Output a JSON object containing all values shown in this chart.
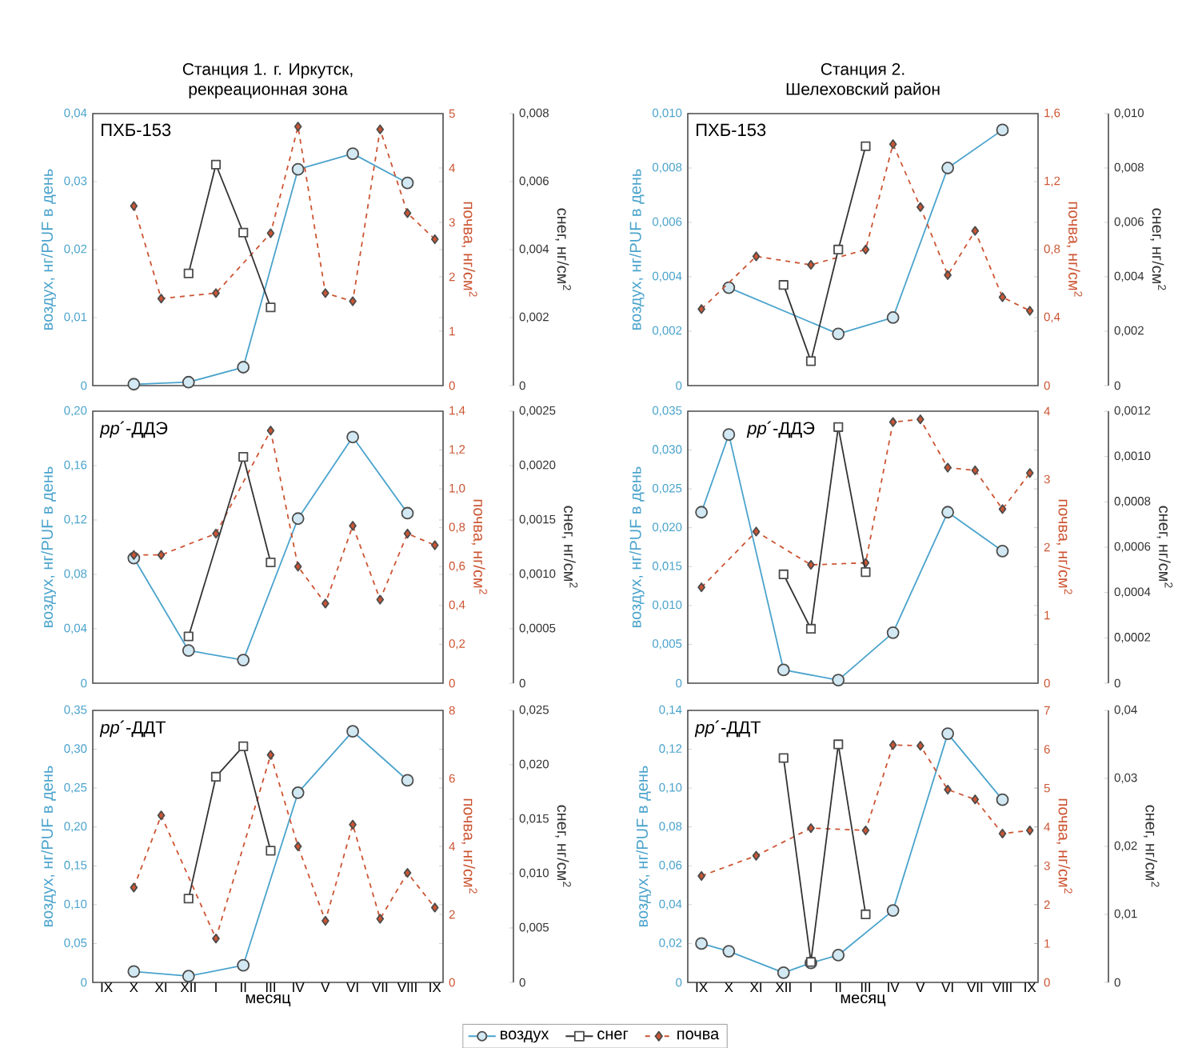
{
  "chart_data": [
    {
      "type": "line",
      "title": "Станция 1. г. Иркутск,",
      "subtitle": "рекреационная зона",
      "annotations": [
        "ПХБ-153"
      ],
      "ylabel": "воздух, нг/PUF в день",
      "y2label": "почва, нг/см$^{2}$",
      "y3label": "снег, нг/см$^{2}$",
      "tick_labels": "y",
      "categories": [
        null,
        null,
        null,
        null,
        null,
        null,
        null,
        null,
        null,
        null,
        null,
        null,
        null
      ],
      "ylim": [
        0,
        0.04
      ],
      "yticks": [
        0,
        {
          "value": 0.01,
          "label": "0,01"
        },
        {
          "value": 0.02,
          "label": "0,02"
        },
        {
          "value": 0.03,
          "label": "0,03"
        },
        {
          "value": 0.04,
          "label": "0,04"
        }
      ],
      "y2lim": [
        0,
        5
      ],
      "y2ticks": [
        0,
        1,
        2,
        3,
        4,
        5
      ],
      "y3lim": [
        0,
        0.008
      ],
      "y3ticks": [
        0,
        {
          "value": 0.002,
          "label": "0,002"
        },
        {
          "value": 0.004,
          "label": "0,004"
        },
        {
          "value": 0.006,
          "label": "0,006"
        },
        {
          "value": 0.008,
          "label": "0,008"
        }
      ],
      "series": [
        {
          "color": "#4aa3cc",
          "marker": "circle",
          "line_style": "solid",
          "values": [
            null,
            0.0002,
            null,
            0.0005,
            null,
            0.0027,
            null,
            0.0318,
            null,
            0.0341,
            null,
            0.0298,
            null
          ]
        },
        {
          "color": "#333333",
          "marker": "square",
          "line_style": "solid",
          "axis": "y3",
          "values": [
            null,
            null,
            null,
            0.0033,
            0.0065,
            0.0045,
            0.0023,
            null,
            null,
            null,
            null,
            null,
            null
          ]
        },
        {
          "color": "#cc5533",
          "marker": "diamond",
          "line_style": "dashed",
          "axis": "y2",
          "values": [
            null,
            3.3,
            1.6,
            null,
            1.7,
            null,
            2.8,
            4.76,
            1.7,
            1.55,
            4.71,
            3.17,
            2.69
          ]
        }
      ]
    },
    {
      "type": "line",
      "title": "Станция 2.",
      "subtitle": "Шелеховский район",
      "annotations": [
        "ПХБ-153"
      ],
      "ylabel": "воздух, нг/PUF в день",
      "y2label": "почва, нг/см$^{2}$",
      "y3label": "снег, нг/см$^{2}$",
      "tick_labels": "y",
      "categories": [
        null,
        null,
        null,
        null,
        null,
        null,
        null,
        null,
        null,
        null,
        null,
        null,
        null
      ],
      "ylim": [
        0,
        0.01
      ],
      "yticks": [
        0,
        {
          "value": 0.002,
          "label": "0,002"
        },
        {
          "value": 0.004,
          "label": "0,004"
        },
        {
          "value": 0.006,
          "label": "0,006"
        },
        {
          "value": 0.008,
          "label": "0,008"
        },
        {
          "value": 0.01,
          "label": "0,010"
        }
      ],
      "y2lim": [
        0,
        1.6
      ],
      "y2ticks": [
        0,
        {
          "value": 0.4,
          "label": "0,4"
        },
        {
          "value": 0.8,
          "label": "0,8"
        },
        {
          "value": 1.2,
          "label": "1,2"
        },
        {
          "value": 1.6,
          "label": "1,6"
        }
      ],
      "y3lim": [
        0,
        0.01
      ],
      "y3ticks": [
        0,
        {
          "value": 0.002,
          "label": "0,002"
        },
        {
          "value": 0.004,
          "label": "0,004"
        },
        {
          "value": 0.006,
          "label": "0,006"
        },
        {
          "value": 0.008,
          "label": "0,008"
        },
        {
          "value": 0.01,
          "label": "0,010"
        }
      ],
      "series": [
        {
          "color": "#4aa3cc",
          "marker": "circle",
          "line_style": "solid",
          "values": [
            null,
            0.0036,
            null,
            null,
            null,
            0.0019,
            null,
            0.0025,
            null,
            0.008,
            null,
            0.0094,
            null
          ]
        },
        {
          "color": "#333333",
          "marker": "square",
          "line_style": "solid",
          "axis": "y3",
          "values": [
            null,
            null,
            null,
            0.0037,
            0.0009,
            0.005,
            0.0088,
            null,
            null,
            null,
            null,
            null,
            null
          ]
        },
        {
          "color": "#cc5533",
          "marker": "diamond",
          "line_style": "dashed",
          "axis": "y2",
          "values": [
            0.45,
            null,
            0.76,
            null,
            0.71,
            null,
            0.8,
            1.42,
            1.05,
            0.65,
            0.91,
            0.52,
            0.44
          ]
        }
      ]
    },
    {
      "type": "line",
      "annotations": [
        "*pp*´-ДДЭ"
      ],
      "ylabel": "воздух, нг/PUF в день",
      "y2label": "почва, нг/см$^{2}$",
      "y3label": "снег, нг/см$^{2}$",
      "tick_labels": "y",
      "categories": [
        null,
        null,
        null,
        null,
        null,
        null,
        null,
        null,
        null,
        null,
        null,
        null,
        null
      ],
      "ylim": [
        0,
        0.2
      ],
      "yticks": [
        0,
        {
          "value": 0.04,
          "label": "0,04"
        },
        {
          "value": 0.08,
          "label": "0,08"
        },
        {
          "value": 0.12,
          "label": "0,12"
        },
        {
          "value": 0.16,
          "label": "0,16"
        },
        {
          "value": 0.2,
          "label": "0,20"
        }
      ],
      "y2lim": [
        0,
        1.4
      ],
      "y2ticks": [
        0,
        {
          "value": 0.2,
          "label": "0,2"
        },
        {
          "value": 0.4,
          "label": "0,4"
        },
        {
          "value": 0.6,
          "label": "0,6"
        },
        {
          "value": 0.8,
          "label": "0,8"
        },
        {
          "value": 1.0,
          "label": "1,0"
        },
        {
          "value": 1.2,
          "label": "1,2"
        },
        {
          "value": 1.4,
          "label": "1,4"
        }
      ],
      "y3lim": [
        0,
        0.0025
      ],
      "y3ticks": [
        0,
        {
          "value": 0.0005,
          "label": "0,0005"
        },
        {
          "value": 0.001,
          "label": "0,0010"
        },
        {
          "value": 0.0015,
          "label": "0,0015"
        },
        {
          "value": 0.002,
          "label": "0,0020"
        },
        {
          "value": 0.0025,
          "label": "0,0025"
        }
      ],
      "series": [
        {
          "color": "#4aa3cc",
          "marker": "circle",
          "line_style": "solid",
          "values": [
            null,
            0.092,
            null,
            0.024,
            null,
            0.017,
            null,
            0.121,
            null,
            0.181,
            null,
            0.125,
            null
          ]
        },
        {
          "color": "#333333",
          "marker": "square",
          "line_style": "solid",
          "axis": "y3",
          "values": [
            null,
            null,
            null,
            0.00043,
            null,
            0.00208,
            0.00111,
            null,
            null,
            null,
            null,
            null,
            null
          ]
        },
        {
          "color": "#cc5533",
          "marker": "diamond",
          "line_style": "dashed",
          "axis": "y2",
          "values": [
            null,
            0.66,
            0.66,
            null,
            0.77,
            null,
            1.3,
            0.6,
            0.41,
            0.81,
            0.43,
            0.77,
            0.71
          ]
        }
      ]
    },
    {
      "type": "line",
      "annotations": [
        "*pp*´-ДДЭ"
      ],
      "ylabel": "воздух, нг/PUF в день",
      "y2label": "почва, нг/см$^{2}$",
      "y3label": "снег, нг/см$^{2}$",
      "tick_labels": "y",
      "categories": [
        null,
        null,
        null,
        null,
        null,
        null,
        null,
        null,
        null,
        null,
        null,
        null,
        null
      ],
      "ylim": [
        0,
        0.035
      ],
      "yticks": [
        0,
        {
          "value": 0.005,
          "label": "0,005"
        },
        {
          "value": 0.01,
          "label": "0,010"
        },
        {
          "value": 0.015,
          "label": "0,015"
        },
        {
          "value": 0.02,
          "label": "0,020"
        },
        {
          "value": 0.025,
          "label": "0,025"
        },
        {
          "value": 0.03,
          "label": "0,030"
        },
        {
          "value": 0.035,
          "label": "0,035"
        }
      ],
      "y2lim": [
        0,
        4
      ],
      "y2ticks": [
        0,
        1,
        2,
        3,
        4
      ],
      "y3lim": [
        0,
        0.0012
      ],
      "y3ticks": [
        0,
        {
          "value": 0.0002,
          "label": "0,0002"
        },
        {
          "value": 0.0004,
          "label": "0,0004"
        },
        {
          "value": 0.0006,
          "label": "0,0006"
        },
        {
          "value": 0.0008,
          "label": "0,0008"
        },
        {
          "value": 0.001,
          "label": "0,0010"
        },
        {
          "value": 0.0012,
          "label": "0,0012"
        }
      ],
      "series": [
        {
          "color": "#4aa3cc",
          "marker": "circle",
          "line_style": "solid",
          "values": [
            0.022,
            0.032,
            null,
            0.0017,
            null,
            0.0004,
            null,
            0.0065,
            null,
            0.022,
            null,
            0.017,
            null
          ]
        },
        {
          "color": "#333333",
          "marker": "square",
          "line_style": "solid",
          "axis": "y3",
          "values": [
            null,
            null,
            null,
            0.00048,
            0.00024,
            0.00113,
            0.00049,
            null,
            null,
            null,
            null,
            null,
            null
          ]
        },
        {
          "color": "#cc5533",
          "marker": "diamond",
          "line_style": "dashed",
          "axis": "y2",
          "values": [
            1.41,
            null,
            2.23,
            null,
            1.74,
            null,
            1.77,
            3.84,
            3.88,
            3.17,
            3.13,
            2.56,
            3.09
          ]
        }
      ]
    },
    {
      "type": "line",
      "annotations": [
        "*pp*´-ДДТ"
      ],
      "xlabel": "месяц",
      "ylabel": "воздух, нг/PUF в день",
      "y2label": "почва, нг/см$^{2}$",
      "y3label": "снег, нг/см$^{2}$",
      "legend": "bottom",
      "categories": [
        "IX",
        "X",
        "XI",
        "XII",
        "I",
        "II",
        "III",
        "IV",
        "V",
        "VI",
        "VII",
        "VIII",
        "IX"
      ],
      "ylim": [
        0,
        0.35
      ],
      "yticks": [
        0,
        {
          "value": 0.05,
          "label": "0,05"
        },
        {
          "value": 0.1,
          "label": "0,10"
        },
        {
          "value": 0.15,
          "label": "0,15"
        },
        {
          "value": 0.2,
          "label": "0,20"
        },
        {
          "value": 0.25,
          "label": "0,25"
        },
        {
          "value": 0.3,
          "label": "0,30"
        },
        {
          "value": 0.35,
          "label": "0,35"
        }
      ],
      "y2lim": [
        0,
        8
      ],
      "y2ticks": [
        0,
        2,
        4,
        6,
        8
      ],
      "y3lim": [
        0,
        0.025
      ],
      "y3ticks": [
        0,
        {
          "value": 0.005,
          "label": "0,005"
        },
        {
          "value": 0.01,
          "label": "0,010"
        },
        {
          "value": 0.015,
          "label": "0,015"
        },
        {
          "value": 0.02,
          "label": "0,020"
        },
        {
          "value": 0.025,
          "label": "0,025"
        }
      ],
      "series": [
        {
          "name": "воздух",
          "color": "#4aa3cc",
          "marker": "circle",
          "line_style": "solid",
          "values": [
            null,
            0.014,
            null,
            0.008,
            null,
            0.022,
            null,
            0.244,
            null,
            0.323,
            null,
            0.26,
            null
          ]
        },
        {
          "name": "снег",
          "color": "#333333",
          "marker": "square",
          "line_style": "solid",
          "axis": "y3",
          "values": [
            null,
            null,
            null,
            0.0077,
            0.0189,
            0.0217,
            0.0121,
            null,
            null,
            null,
            null,
            null,
            null
          ]
        },
        {
          "name": "почва",
          "color": "#cc5533",
          "marker": "diamond",
          "line_style": "dashed",
          "axis": "y2",
          "values": [
            null,
            2.79,
            4.91,
            null,
            1.29,
            null,
            6.69,
            4.0,
            1.81,
            4.64,
            1.87,
            3.22,
            2.2
          ]
        }
      ]
    },
    {
      "type": "line",
      "annotations": [
        "*pp*´-ДДТ"
      ],
      "xlabel": "месяц",
      "ylabel": "воздух, нг/PUF в день",
      "y2label": "почва, нг/см$^{2}$",
      "y3label": "снег, нг/см$^{2}$",
      "categories": [
        "IX",
        "X",
        "XI",
        "XII",
        "I",
        "II",
        "III",
        "IV",
        "V",
        "VI",
        "VII",
        "VIII",
        "IX"
      ],
      "ylim": [
        0,
        0.14
      ],
      "yticks": [
        0,
        {
          "value": 0.02,
          "label": "0,02"
        },
        {
          "value": 0.04,
          "label": "0,04"
        },
        {
          "value": 0.06,
          "label": "0,06"
        },
        {
          "value": 0.08,
          "label": "0,08"
        },
        {
          "value": 0.1,
          "label": "0,10"
        },
        {
          "value": 0.12,
          "label": "0,12"
        },
        {
          "value": 0.14,
          "label": "0,14"
        }
      ],
      "y2lim": [
        0,
        7
      ],
      "y2ticks": [
        0,
        1,
        2,
        3,
        4,
        5,
        6,
        7
      ],
      "y3lim": [
        0,
        0.04
      ],
      "y3ticks": [
        0,
        {
          "value": 0.01,
          "label": "0,01"
        },
        {
          "value": 0.02,
          "label": "0,02"
        },
        {
          "value": 0.03,
          "label": "0,03"
        },
        {
          "value": 0.04,
          "label": "0,04"
        }
      ],
      "series": [
        {
          "color": "#4aa3cc",
          "marker": "circle",
          "line_style": "solid",
          "values": [
            0.02,
            0.016,
            null,
            0.005,
            0.01,
            0.014,
            null,
            0.037,
            null,
            0.128,
            null,
            0.094,
            null
          ]
        },
        {
          "color": "#333333",
          "marker": "square",
          "line_style": "solid",
          "axis": "y3",
          "values": [
            null,
            null,
            null,
            0.033,
            0.003,
            0.035,
            0.01,
            null,
            null,
            null,
            null,
            null,
            null
          ]
        },
        {
          "color": "#cc5533",
          "marker": "diamond",
          "line_style": "dashed",
          "axis": "y2",
          "values": [
            2.74,
            null,
            3.26,
            null,
            3.97,
            null,
            3.91,
            6.11,
            6.09,
            4.96,
            4.71,
            3.83,
            3.91
          ]
        }
      ]
    }
  ]
}
